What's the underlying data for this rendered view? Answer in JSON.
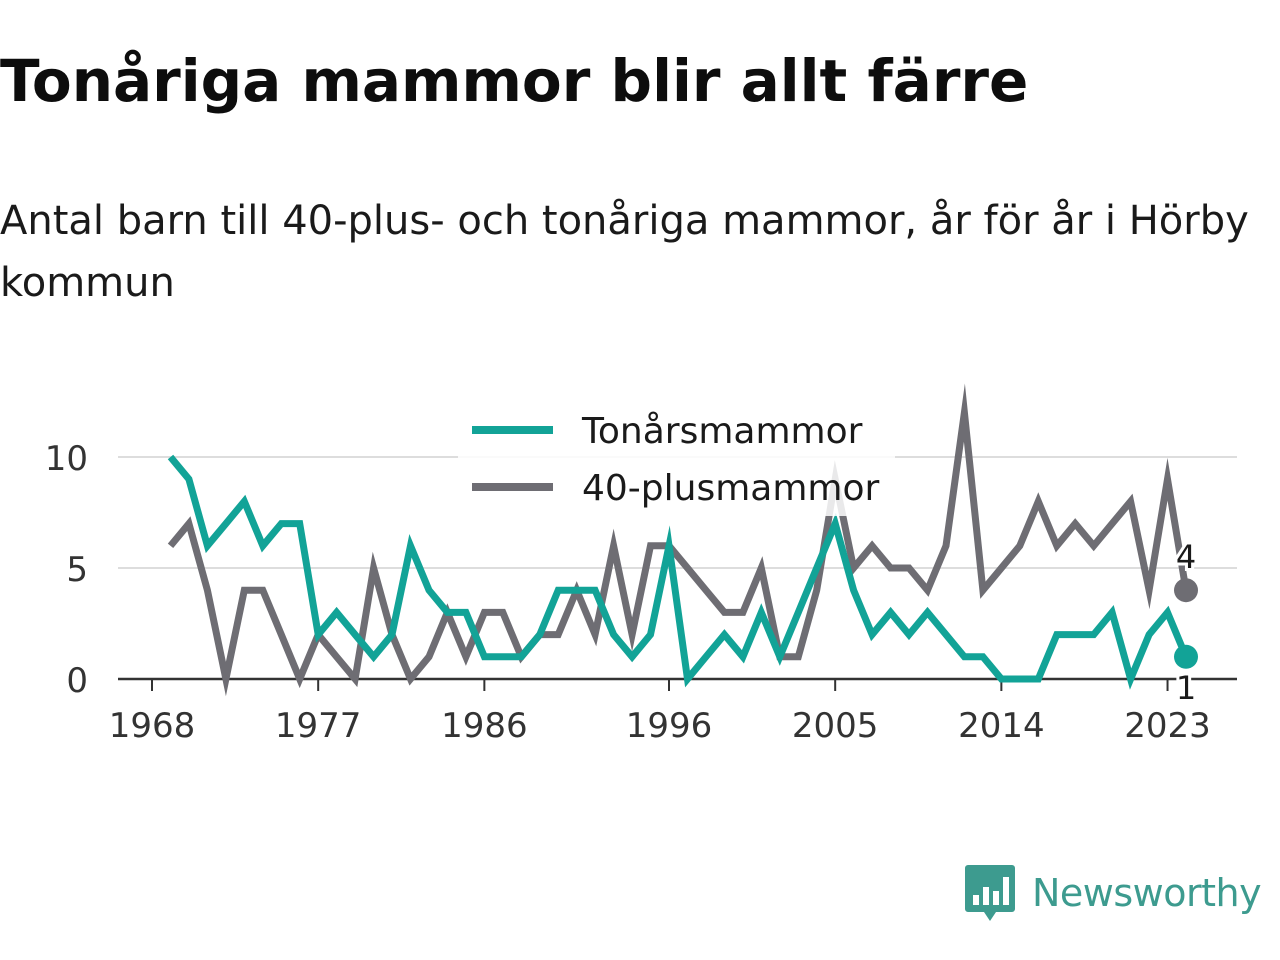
{
  "title": "Tonåriga mammor blir allt färre",
  "subtitle": "Antal barn till 40-plus- och tonåriga mammor, år för år i Hörby kommun",
  "brand": {
    "name": "Newsworthy",
    "icon": "newsworthy-logo-icon",
    "color": "#3d9b8f"
  },
  "chart_data": {
    "type": "line",
    "x": [
      1969,
      1970,
      1971,
      1972,
      1973,
      1974,
      1975,
      1976,
      1977,
      1978,
      1979,
      1980,
      1981,
      1982,
      1983,
      1984,
      1985,
      1986,
      1987,
      1988,
      1989,
      1990,
      1991,
      1992,
      1993,
      1994,
      1995,
      1996,
      1997,
      1998,
      1999,
      2000,
      2001,
      2002,
      2003,
      2004,
      2005,
      2006,
      2007,
      2008,
      2009,
      2010,
      2011,
      2012,
      2013,
      2014,
      2015,
      2016,
      2017,
      2018,
      2019,
      2020,
      2021,
      2022,
      2023,
      2024
    ],
    "series": [
      {
        "name": "Tonårsmammor",
        "color": "#12a397",
        "values": [
          10,
          9,
          6,
          7,
          8,
          6,
          7,
          7,
          2,
          3,
          2,
          1,
          2,
          6,
          4,
          3,
          3,
          1,
          1,
          1,
          2,
          4,
          4,
          4,
          2,
          1,
          2,
          6,
          0,
          1,
          2,
          1,
          3,
          1,
          3,
          5,
          7,
          4,
          2,
          3,
          2,
          3,
          2,
          1,
          1,
          0,
          0,
          0,
          2,
          2,
          2,
          3,
          0,
          2,
          3,
          1
        ],
        "end_label": "1"
      },
      {
        "name": "40-plusmammor",
        "color": "#6e6d73",
        "values": [
          6,
          7,
          4,
          0,
          4,
          4,
          2,
          0,
          2,
          1,
          0,
          5,
          2,
          0,
          1,
          3,
          1,
          3,
          3,
          1,
          2,
          2,
          4,
          2,
          6,
          2,
          6,
          6,
          5,
          4,
          3,
          3,
          5,
          1,
          1,
          4,
          9,
          5,
          6,
          5,
          5,
          4,
          6,
          12,
          4,
          5,
          6,
          8,
          6,
          7,
          6,
          7,
          8,
          4,
          9,
          4
        ],
        "end_label": "4"
      }
    ],
    "x_ticks": [
      "1968",
      "1977",
      "1986",
      "1996",
      "2005",
      "2014",
      "2023"
    ],
    "y_ticks": [
      "0",
      "5",
      "10"
    ],
    "xlim": [
      1968,
      2024
    ],
    "ylim": [
      0,
      12
    ],
    "grid": true,
    "legend_position": "top-center"
  }
}
